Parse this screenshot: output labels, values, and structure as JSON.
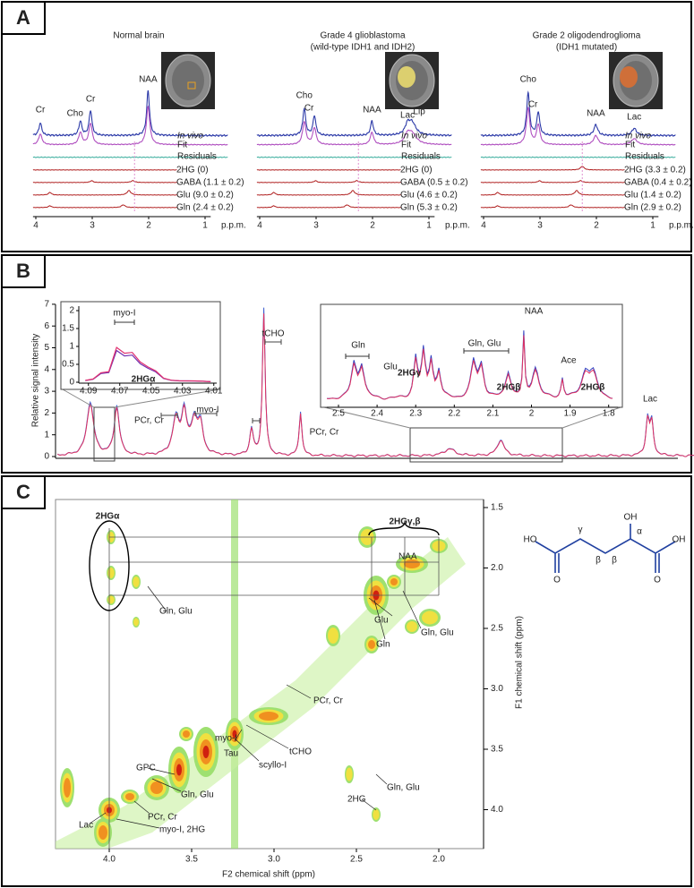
{
  "panel_a": {
    "label": "A",
    "spectra": [
      {
        "title": "Normal brain",
        "peaks": [
          "Cr",
          "Cho",
          "Cr",
          "NAA"
        ],
        "fits": [
          "2HG (0)",
          "GABA (1.1 ± 0.2)",
          "Glu (9.0 ± 0.2)",
          "Gln (2.4 ± 0.2)"
        ]
      },
      {
        "title": "Grade 4 glioblastoma",
        "subtitle": "(wild-type IDH1 and IDH2)",
        "peaks": [
          "Cho",
          "Cr",
          "NAA",
          "Lac",
          "Lip"
        ],
        "fits": [
          "2HG (0)",
          "GABA (0.5 ± 0.2)",
          "Glu (4.6 ± 0.2)",
          "Gln (5.3 ± 0.2)"
        ]
      },
      {
        "title": "Grade 2 oligodendroglioma",
        "subtitle": "(IDH1 mutated)",
        "peaks": [
          "Cho",
          "Cr",
          "NAA",
          "Lac"
        ],
        "fits": [
          "2HG (3.3 ± 0.2)",
          "GABA (0.4 ± 0.2)",
          "Glu (1.4 ± 0.2)",
          "Gln (2.9 ± 0.2)"
        ]
      }
    ],
    "trace_labels": [
      "In vivo",
      "Fit",
      "Residuals"
    ],
    "x_ticks": [
      4,
      3,
      2,
      1
    ],
    "x_unit": "p.p.m."
  },
  "panel_b": {
    "label": "B",
    "y_label": "Relative signal intensity",
    "y_ticks": [
      0,
      1,
      2,
      3,
      4,
      5,
      6,
      7
    ],
    "peak_labels": [
      "PCr, Cr",
      "myo-I",
      "tCHO",
      "PCr, Cr",
      "Lac"
    ],
    "inset_left": {
      "labels": [
        "myo-I",
        "2HGα"
      ],
      "y_ticks": [
        0,
        0.5,
        1,
        1.5,
        2
      ],
      "x_ticks": [
        4.09,
        4.07,
        4.05,
        4.03,
        4.01
      ]
    },
    "inset_right": {
      "labels": [
        "Gln",
        "Glu",
        "2HGγ",
        "Gln, Glu",
        "NAA",
        "2HGβ",
        "Ace",
        "2HGβ"
      ],
      "x_ticks": [
        2.5,
        2.4,
        2.3,
        2.2,
        2.1,
        2,
        1.9,
        1.8
      ]
    }
  },
  "panel_c": {
    "label": "C",
    "x_label": "F2 chemical shift (ppm)",
    "y_label": "F1 chemical shift (ppm)",
    "x_ticks": [
      {
        "value": 4,
        "label": "4.0"
      },
      3.5,
      {
        "value": 3,
        "label": "3.0"
      },
      2.5,
      {
        "value": 2,
        "label": "2.0"
      }
    ],
    "y_ticks": [
      1.5,
      {
        "value": 2,
        "label": "2.0"
      },
      2.5,
      {
        "value": 3,
        "label": "3.0"
      },
      3.5,
      {
        "value": 4,
        "label": "4.0"
      }
    ],
    "labels": [
      "2HGα",
      "2HGγ,β",
      "NAA",
      "Gln, Glu",
      "Glu",
      "Gln",
      "Gln, Glu",
      "PCr, Cr",
      "myo-I",
      "tCHO",
      "Tau",
      "scyllo-I",
      "GPC",
      "Gln, Glu",
      "PCr, Cr",
      "Lac",
      "myo-I, 2HG",
      "2HG",
      "Gln, Glu"
    ],
    "molecule": [
      "HO",
      "O",
      "γ",
      "β",
      "β",
      "OH",
      "α",
      "O",
      "OH"
    ]
  }
}
